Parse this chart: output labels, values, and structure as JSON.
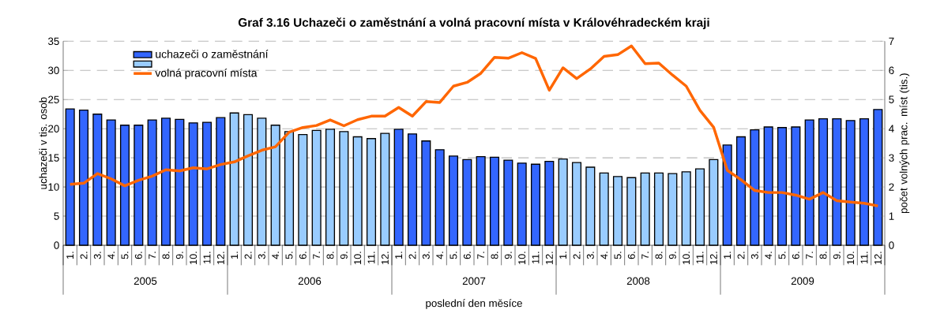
{
  "chart_data": {
    "type": "bar",
    "title": "Graf 3.16 Uchazeči o zaměstnání a volná pracovní místa v Královéhradeckém kraji",
    "xlabel": "poslední den měsíce",
    "ylabel": "uchazeči v tis. osob",
    "y2label": "počet volných prac. míst (tis.)",
    "categories": [
      "1.",
      "2.",
      "3.",
      "4.",
      "5.",
      "6.",
      "7.",
      "8.",
      "9.",
      "10.",
      "11.",
      "12.",
      "1.",
      "2.",
      "3.",
      "4.",
      "5.",
      "6.",
      "7.",
      "8.",
      "9.",
      "10.",
      "11.",
      "12.",
      "1.",
      "2.",
      "3.",
      "4.",
      "5.",
      "6.",
      "7.",
      "8.",
      "9.",
      "10.",
      "11.",
      "12.",
      "1.",
      "2.",
      "3.",
      "4.",
      "5.",
      "6.",
      "7.",
      "8.",
      "9.",
      "10.",
      "11.",
      "12.",
      "1.",
      "2.",
      "3.",
      "4.",
      "5.",
      "6.",
      "7.",
      "8.",
      "9.",
      "10.",
      "11.",
      "12."
    ],
    "series": [
      {
        "name": "uchazeči o zaměstnání",
        "color": "#3366ff",
        "values": [
          23.4,
          23.2,
          22.5,
          21.5,
          20.6,
          20.6,
          21.5,
          21.8,
          21.6,
          21.0,
          21.1,
          21.9,
          null,
          null,
          null,
          null,
          null,
          null,
          null,
          null,
          null,
          null,
          null,
          null,
          19.9,
          19.1,
          17.9,
          16.4,
          15.3,
          14.7,
          15.2,
          15.1,
          14.6,
          14.1,
          13.9,
          14.4,
          null,
          null,
          null,
          null,
          null,
          null,
          null,
          null,
          null,
          null,
          null,
          null,
          17.2,
          18.6,
          19.8,
          20.3,
          20.2,
          20.3,
          21.5,
          21.7,
          21.7,
          21.4,
          21.7,
          23.3
        ]
      },
      {
        "color": "#99ccff",
        "values": [
          null,
          null,
          null,
          null,
          null,
          null,
          null,
          null,
          null,
          null,
          null,
          null,
          22.7,
          22.4,
          21.8,
          20.6,
          19.5,
          19.0,
          19.7,
          19.9,
          19.5,
          18.6,
          18.3,
          19.2,
          null,
          null,
          null,
          null,
          null,
          null,
          null,
          null,
          null,
          null,
          null,
          null,
          14.8,
          14.2,
          13.4,
          12.4,
          11.8,
          11.6,
          12.4,
          12.4,
          12.3,
          12.6,
          13.1,
          14.7,
          null,
          null,
          null,
          null,
          null,
          null,
          null,
          null,
          null,
          null,
          null,
          null
        ]
      },
      {
        "name": "volná pracovní místa",
        "type": "line",
        "axis": "y2",
        "color": "#ff6600",
        "values": [
          2.09,
          2.13,
          2.46,
          2.28,
          2.04,
          2.23,
          2.37,
          2.59,
          2.55,
          2.66,
          2.62,
          2.77,
          2.86,
          3.07,
          3.26,
          3.38,
          3.88,
          4.04,
          4.11,
          4.3,
          4.1,
          4.31,
          4.43,
          4.43,
          4.73,
          4.43,
          4.93,
          4.9,
          5.46,
          5.59,
          5.9,
          6.45,
          6.42,
          6.61,
          6.41,
          5.32,
          6.09,
          5.72,
          6.05,
          6.48,
          6.54,
          6.84,
          6.23,
          6.25,
          5.84,
          5.46,
          4.63,
          4.05,
          2.57,
          2.25,
          1.88,
          1.81,
          1.81,
          1.72,
          1.58,
          1.81,
          1.53,
          1.48,
          1.44,
          1.35
        ]
      }
    ],
    "ylim": [
      0,
      35
    ],
    "yticks": [
      0,
      5,
      10,
      15,
      20,
      25,
      30,
      35
    ],
    "y2lim": [
      0,
      7
    ],
    "y2ticks": [
      0,
      1,
      2,
      3,
      4,
      5,
      6,
      7
    ],
    "grid": "y",
    "legend": "top left",
    "annotations": [
      "2005",
      "2006",
      "2007",
      "2008",
      "2009"
    ]
  }
}
